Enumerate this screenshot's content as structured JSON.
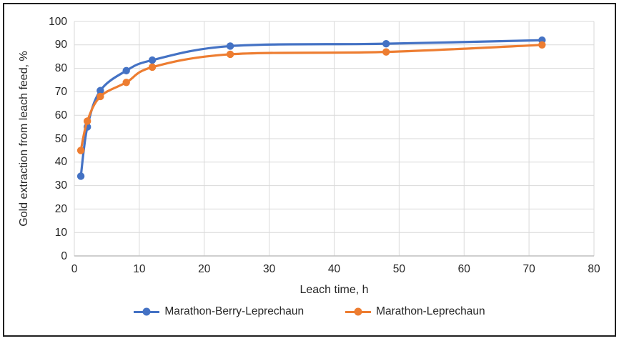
{
  "chart_data": {
    "type": "line",
    "title": "",
    "xlabel": "Leach time, h",
    "ylabel": "Gold extraction from leach feed, %",
    "xlim": [
      0,
      80
    ],
    "ylim": [
      0,
      100
    ],
    "x_ticks": [
      0,
      10,
      20,
      30,
      40,
      50,
      60,
      70,
      80
    ],
    "y_ticks": [
      0,
      10,
      20,
      30,
      40,
      50,
      60,
      70,
      80,
      90,
      100
    ],
    "grid": true,
    "smooth_lines": true,
    "marker": "circle",
    "legend_position": "bottom",
    "x": [
      1,
      2,
      4,
      8,
      12,
      24,
      48,
      72
    ],
    "series": [
      {
        "name": "Marathon-Berry-Leprechaun",
        "color": "#4472C4",
        "values": [
          34,
          55,
          70.5,
          79,
          83.5,
          89.5,
          90.5,
          92
        ]
      },
      {
        "name": "Marathon-Leprechaun",
        "color": "#ED7D31",
        "values": [
          45,
          57.5,
          68,
          74,
          80.5,
          86,
          87,
          90
        ]
      }
    ]
  },
  "colors": {
    "grid": "#D9D9D9",
    "axis": "#BFBFBF",
    "text": "#262626",
    "frame_border": "#1F1F1F",
    "background": "#FFFFFF"
  }
}
